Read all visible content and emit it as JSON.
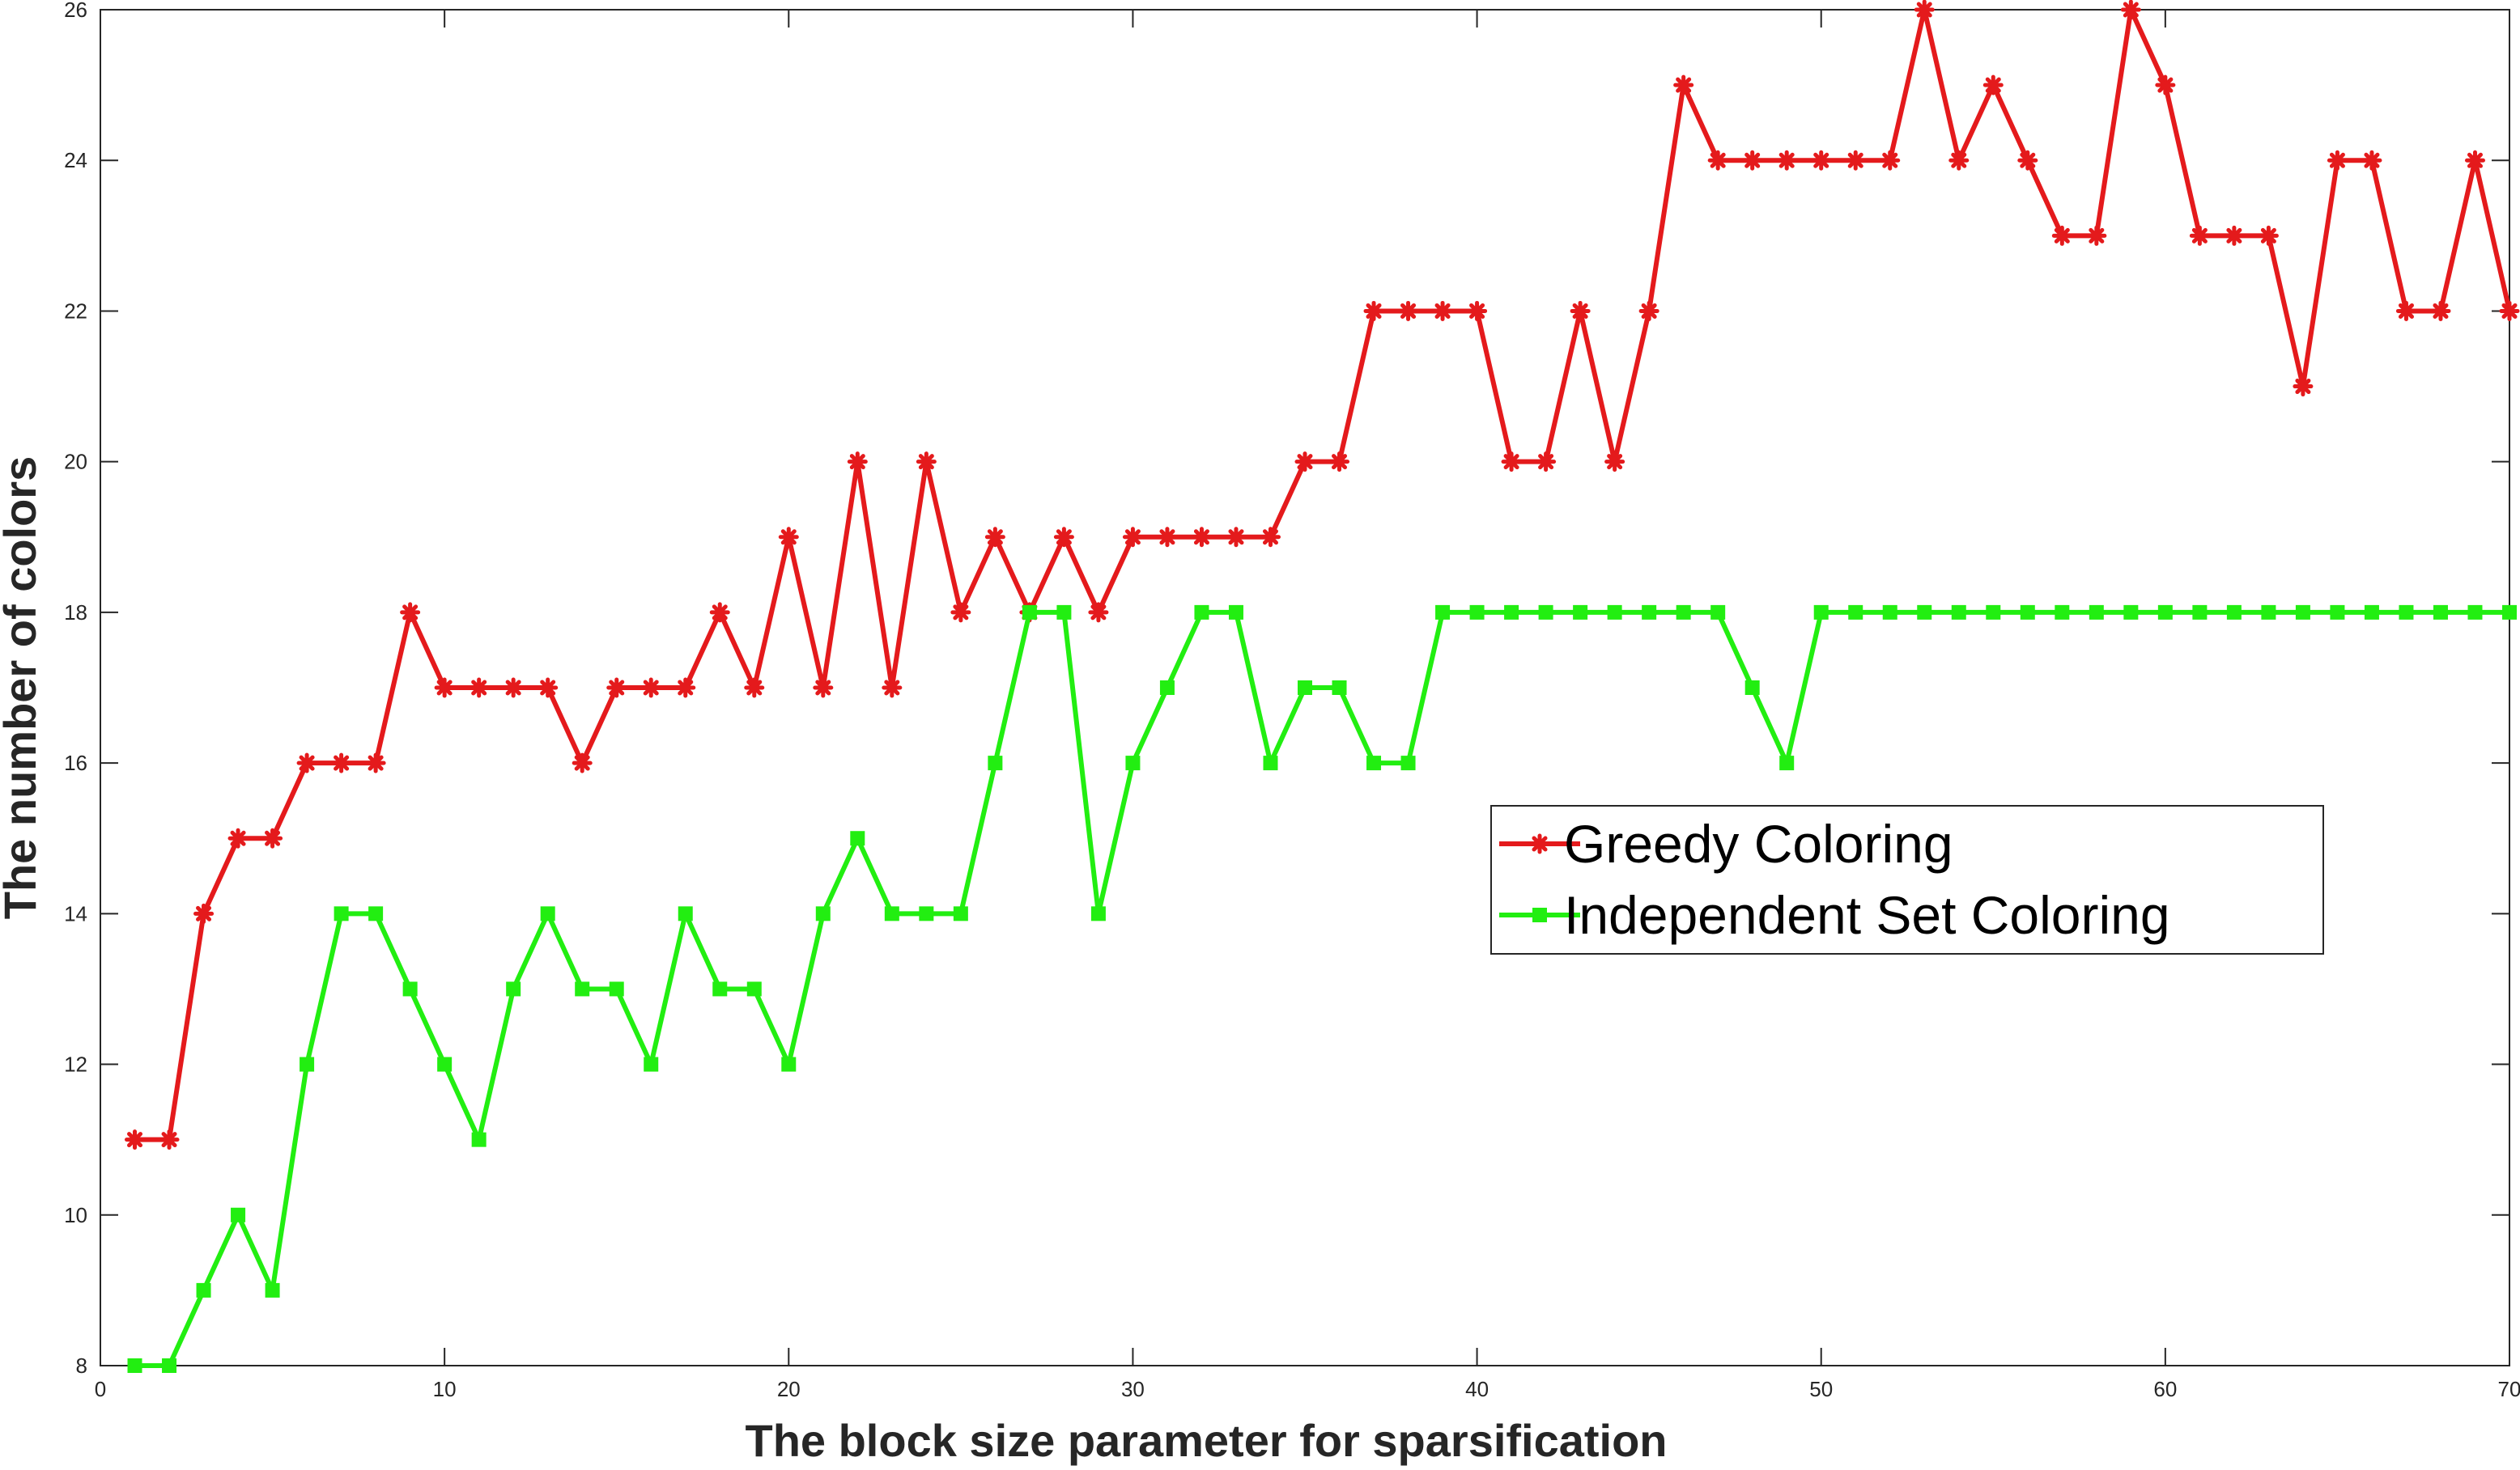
{
  "chart_data": {
    "type": "line",
    "title": "",
    "xlabel": "The block size parameter for sparsification",
    "ylabel": "The number of colors",
    "xlim": [
      0,
      70
    ],
    "ylim": [
      8,
      26
    ],
    "xticks": [
      0,
      10,
      20,
      30,
      40,
      50,
      60,
      70
    ],
    "yticks": [
      8,
      10,
      12,
      14,
      16,
      18,
      20,
      22,
      24,
      26
    ],
    "grid": false,
    "legend_position": "center-right",
    "x": [
      1,
      2,
      3,
      4,
      5,
      6,
      7,
      8,
      9,
      10,
      11,
      12,
      13,
      14,
      15,
      16,
      17,
      18,
      19,
      20,
      21,
      22,
      23,
      24,
      25,
      26,
      27,
      28,
      29,
      30,
      31,
      32,
      33,
      34,
      35,
      36,
      37,
      38,
      39,
      40,
      41,
      42,
      43,
      44,
      45,
      46,
      47,
      48,
      49,
      50,
      51,
      52,
      53,
      54,
      55,
      56,
      57,
      58,
      59,
      60,
      61,
      62,
      63,
      64,
      65,
      66,
      67,
      68,
      69,
      70
    ],
    "series": [
      {
        "name": "Greedy Coloring",
        "color": "#e41a1c",
        "marker": "asterisk",
        "values": [
          11,
          11,
          14,
          15,
          15,
          16,
          16,
          16,
          18,
          17,
          17,
          17,
          17,
          16,
          17,
          17,
          17,
          18,
          17,
          19,
          17,
          20,
          17,
          20,
          18,
          19,
          18,
          19,
          18,
          19,
          19,
          19,
          19,
          19,
          20,
          20,
          22,
          22,
          22,
          22,
          20,
          20,
          22,
          20,
          22,
          25,
          24,
          24,
          24,
          24,
          24,
          24,
          26,
          24,
          25,
          24,
          23,
          23,
          26,
          25,
          23,
          23,
          23,
          21,
          24,
          24,
          22,
          22,
          24,
          22
        ]
      },
      {
        "name": "Independent Set Coloring",
        "color": "#22ee11",
        "marker": "square",
        "values": [
          8,
          8,
          9,
          10,
          9,
          12,
          14,
          14,
          13,
          12,
          11,
          13,
          14,
          13,
          13,
          12,
          14,
          13,
          13,
          12,
          14,
          15,
          14,
          14,
          14,
          16,
          18,
          18,
          14,
          16,
          17,
          18,
          18,
          16,
          17,
          17,
          16,
          16,
          18,
          18,
          18,
          18,
          18,
          18,
          18,
          18,
          18,
          17,
          16,
          18,
          18,
          18,
          18,
          18,
          18,
          18,
          18,
          18,
          18,
          18,
          18,
          18,
          18,
          18,
          18,
          18,
          18,
          18,
          18,
          18
        ]
      }
    ]
  }
}
